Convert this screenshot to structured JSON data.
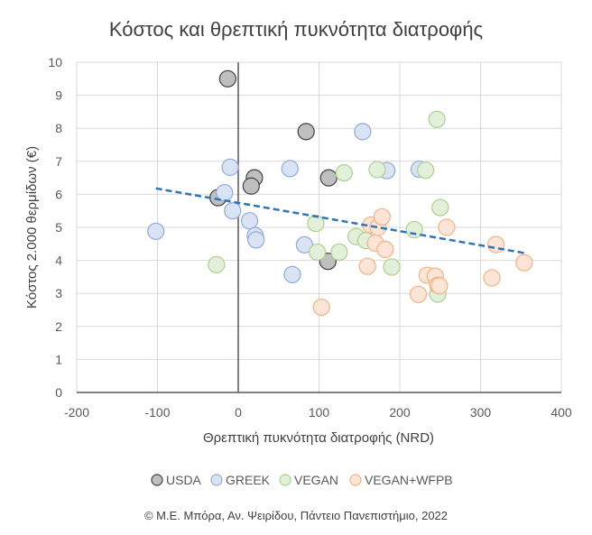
{
  "chart_data": {
    "type": "scatter",
    "title": "Κόστος και θρεπτική πυκνότητα διατροφής",
    "xlabel": "Θρεπτική πυκνότητα διατροφής (NRD)",
    "ylabel": "Κόστος 2.000 θερμίδων (€)",
    "xlim": [
      -200,
      400
    ],
    "ylim": [
      0,
      10
    ],
    "xticks": [
      -200,
      -100,
      0,
      100,
      200,
      300,
      400
    ],
    "yticks": [
      0,
      1,
      2,
      3,
      4,
      5,
      6,
      7,
      8,
      9,
      10
    ],
    "xtick_labels": [
      "-200",
      "-100",
      "0",
      "100",
      "200",
      "300",
      "400"
    ],
    "ytick_labels": [
      "0",
      "1",
      "2",
      "3",
      "4",
      "5",
      "6",
      "7",
      "8",
      "9",
      "10"
    ],
    "grid": true,
    "legend_position": "bottom",
    "series": [
      {
        "name": "USDA",
        "fill": "#bfbfbf",
        "stroke": "#404040",
        "points": [
          [
            -13,
            9.5
          ],
          [
            84,
            7.9
          ],
          [
            20,
            6.5
          ],
          [
            112,
            6.5
          ],
          [
            16,
            6.25
          ],
          [
            -25,
            5.9
          ],
          [
            111,
            3.97
          ]
        ]
      },
      {
        "name": "GREEK",
        "fill": "#dae3f3",
        "stroke": "#8faadc",
        "points": [
          [
            -102,
            4.88
          ],
          [
            -10,
            6.82
          ],
          [
            -17,
            6.05
          ],
          [
            -7,
            5.5
          ],
          [
            14,
            5.2
          ],
          [
            21,
            4.75
          ],
          [
            22,
            4.62
          ],
          [
            64,
            6.78
          ],
          [
            67,
            3.57
          ],
          [
            82,
            4.47
          ],
          [
            154,
            7.9
          ],
          [
            184,
            6.72
          ],
          [
            224,
            6.76
          ]
        ]
      },
      {
        "name": "VEGAN",
        "fill": "#e2f0d9",
        "stroke": "#a9d18e",
        "points": [
          [
            -27,
            3.87
          ],
          [
            96,
            5.12
          ],
          [
            98,
            4.25
          ],
          [
            125,
            4.25
          ],
          [
            131,
            6.65
          ],
          [
            146,
            4.72
          ],
          [
            158,
            4.6
          ],
          [
            172,
            6.75
          ],
          [
            190,
            3.8
          ],
          [
            218,
            4.93
          ],
          [
            232,
            6.73
          ],
          [
            246,
            8.27
          ],
          [
            250,
            5.6
          ],
          [
            247,
            2.98
          ]
        ]
      },
      {
        "name": "VEGAN+WFPB",
        "fill": "#fbe5d6",
        "stroke": "#f4b183",
        "points": [
          [
            103,
            2.58
          ],
          [
            160,
            3.82
          ],
          [
            164,
            5.07
          ],
          [
            170,
            4.52
          ],
          [
            173,
            5.0
          ],
          [
            178,
            5.32
          ],
          [
            182,
            4.33
          ],
          [
            223,
            2.97
          ],
          [
            234,
            3.55
          ],
          [
            244,
            3.52
          ],
          [
            247,
            3.25
          ],
          [
            249,
            3.23
          ],
          [
            258,
            5.0
          ],
          [
            314,
            3.47
          ],
          [
            319,
            4.48
          ],
          [
            354,
            3.93
          ]
        ]
      }
    ],
    "trendline": {
      "style": "dashed",
      "color": "#2e75b6",
      "from": [
        -102,
        6.18
      ],
      "to": [
        355,
        4.22
      ]
    }
  },
  "footer": {
    "credit": "© Μ.Ε. Μπόρα, Αν. Ψειρίδου, Πάντειο Πανεπιστήμιο, 2022"
  }
}
